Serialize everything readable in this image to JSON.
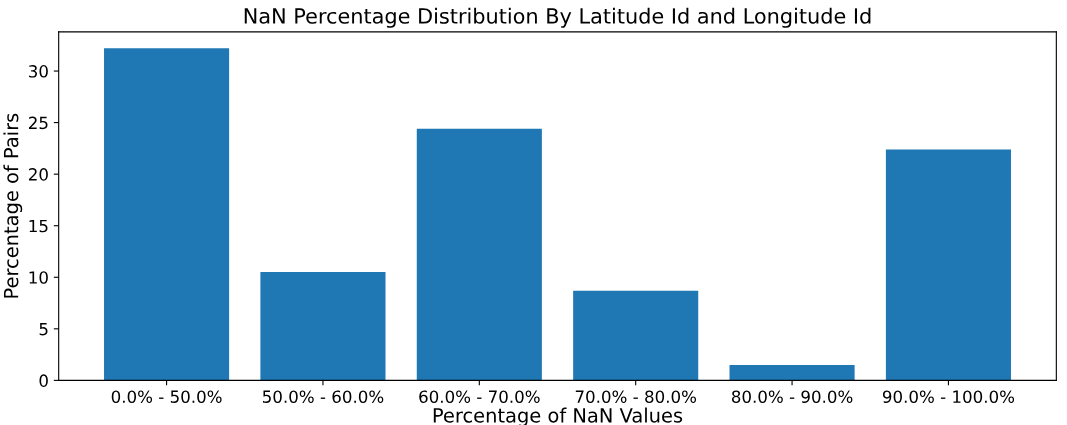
{
  "chart_data": {
    "type": "bar",
    "title": "NaN Percentage Distribution By Latitude Id and Longitude Id",
    "xlabel": "Percentage of NaN Values",
    "ylabel": "Percentage of Pairs",
    "categories": [
      "0.0% - 50.0%",
      "50.0% - 60.0%",
      "60.0% - 70.0%",
      "70.0% - 80.0%",
      "80.0% - 90.0%",
      "90.0% - 100.0%"
    ],
    "values": [
      32.2,
      10.5,
      24.4,
      8.7,
      1.5,
      22.4
    ],
    "color": "#1f77b4",
    "ylim": [
      0,
      33.8
    ],
    "yticks": [
      0,
      5,
      10,
      15,
      20,
      25,
      30
    ],
    "grid": false
  }
}
